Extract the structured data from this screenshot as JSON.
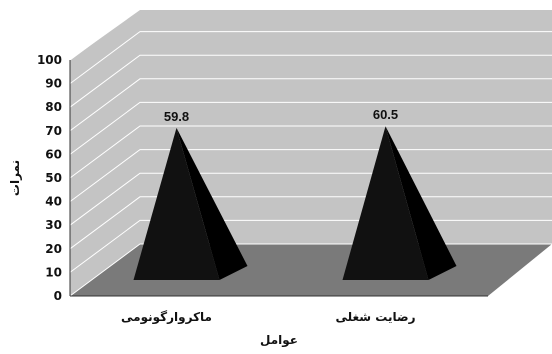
{
  "chart_data": {
    "type": "bar",
    "style": "3d-pyramid",
    "categories": [
      "ماکروارگونومی",
      "رضایت شغلی"
    ],
    "values": [
      59.8,
      60.5
    ],
    "data_labels": [
      "59.8",
      "60.5"
    ],
    "xlabel": "عوامل",
    "ylabel": "نمرات",
    "ylim": [
      0,
      100
    ],
    "yticks": [
      0,
      10,
      20,
      30,
      40,
      50,
      60,
      70,
      80,
      90,
      100
    ],
    "grid": true,
    "legend": "none",
    "colors": {
      "wall": "#c4c4c4",
      "floor": "#7a7a7a",
      "pyramid_front": "#111111",
      "pyramid_side": "#000000",
      "gridline": "#ffffff"
    }
  }
}
